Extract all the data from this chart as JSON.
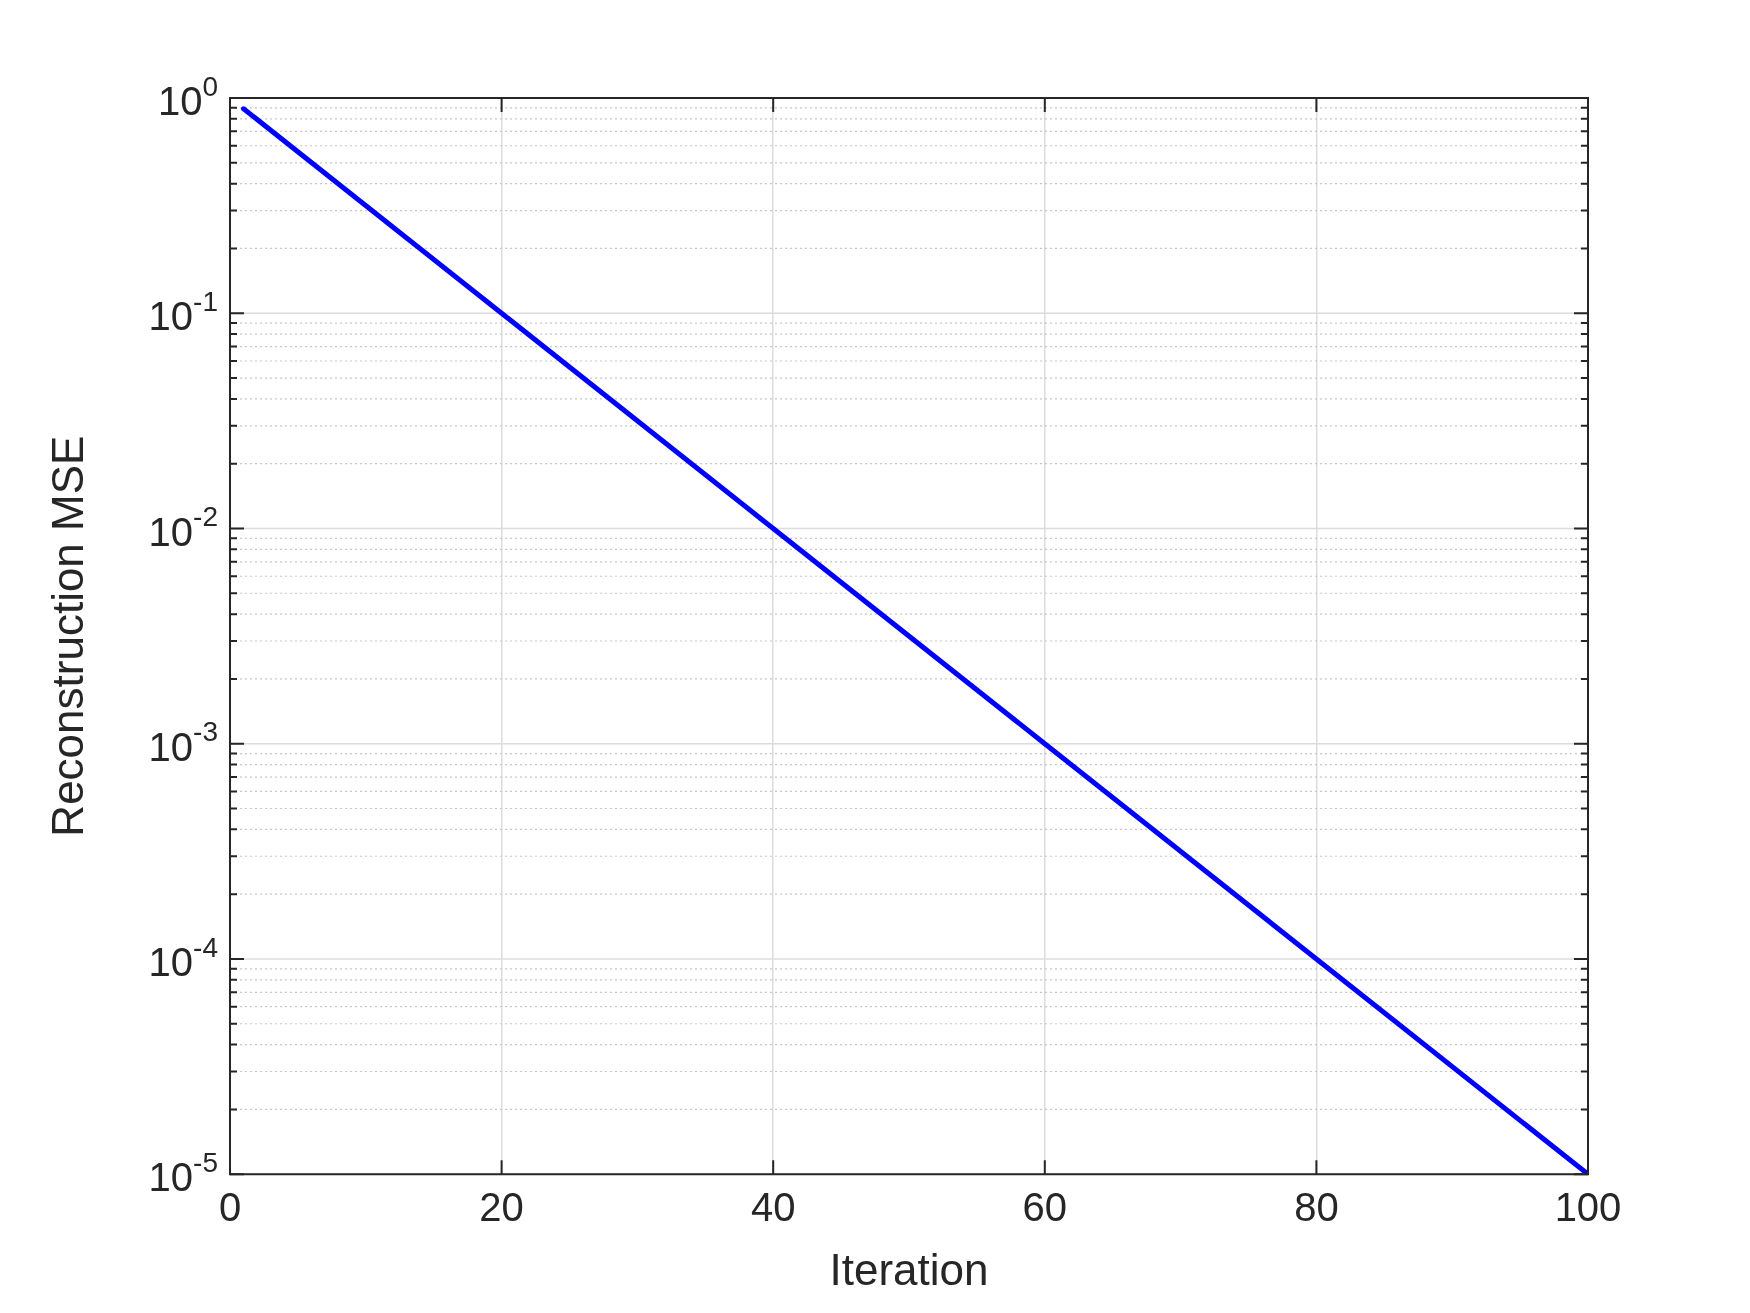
{
  "chart_data": {
    "type": "line",
    "xlabel": "Iteration",
    "ylabel": "Reconstruction MSE",
    "log": "y",
    "grid": true,
    "legend": false,
    "marker": "none",
    "line_style": "solid",
    "x": [
      1,
      20,
      40,
      60,
      80,
      100
    ],
    "series": [
      {
        "color": "#0000ff",
        "values": [
          0.891,
          0.1,
          0.01,
          0.001,
          0.0001,
          1e-05
        ]
      }
    ],
    "xlim": [
      0,
      100
    ],
    "xticks": [
      0,
      20,
      40,
      60,
      80,
      100
    ],
    "ylim": [
      1e-05,
      1
    ],
    "yticks": [
      {
        "value": 1e-05,
        "label": "10$^{-5}$"
      },
      {
        "value": 2e-05,
        "label": null
      },
      {
        "value": 3e-05,
        "label": null
      },
      {
        "value": 4e-05,
        "label": null
      },
      {
        "value": 5e-05,
        "label": null
      },
      {
        "value": 6e-05,
        "label": null
      },
      {
        "value": 7e-05,
        "label": null
      },
      {
        "value": 8e-05,
        "label": null
      },
      {
        "value": 9e-05,
        "label": null
      },
      {
        "value": 0.0001,
        "label": "10$^{-4}$"
      },
      {
        "value": 0.0002,
        "label": null
      },
      {
        "value": 0.0003,
        "label": null
      },
      {
        "value": 0.0004,
        "label": null
      },
      {
        "value": 0.0005,
        "label": null
      },
      {
        "value": 0.0006,
        "label": null
      },
      {
        "value": 0.0007,
        "label": null
      },
      {
        "value": 0.0008,
        "label": null
      },
      {
        "value": 0.0009,
        "label": null
      },
      {
        "value": 0.001,
        "label": "10$^{-3}$"
      },
      {
        "value": 0.002,
        "label": null
      },
      {
        "value": 0.003,
        "label": null
      },
      {
        "value": 0.004,
        "label": null
      },
      {
        "value": 0.005,
        "label": null
      },
      {
        "value": 0.006,
        "label": null
      },
      {
        "value": 0.007,
        "label": null
      },
      {
        "value": 0.008,
        "label": null
      },
      {
        "value": 0.009,
        "label": null
      },
      {
        "value": 0.01,
        "label": "10$^{-2}$"
      },
      {
        "value": 0.02,
        "label": null
      },
      {
        "value": 0.03,
        "label": null
      },
      {
        "value": 0.04,
        "label": null
      },
      {
        "value": 0.05,
        "label": null
      },
      {
        "value": 0.06,
        "label": null
      },
      {
        "value": 0.07,
        "label": null
      },
      {
        "value": 0.08,
        "label": null
      },
      {
        "value": 0.09,
        "label": null
      },
      {
        "value": 0.1,
        "label": "10$^{-1}$"
      },
      {
        "value": 0.2,
        "label": null
      },
      {
        "value": 0.3,
        "label": null
      },
      {
        "value": 0.4,
        "label": null
      },
      {
        "value": 0.5,
        "label": null
      },
      {
        "value": 0.6,
        "label": null
      },
      {
        "value": 0.7,
        "label": null
      },
      {
        "value": 0.8,
        "label": null
      },
      {
        "value": 0.9,
        "label": null
      },
      {
        "value": 1,
        "label": "10$^{0}$"
      }
    ]
  }
}
